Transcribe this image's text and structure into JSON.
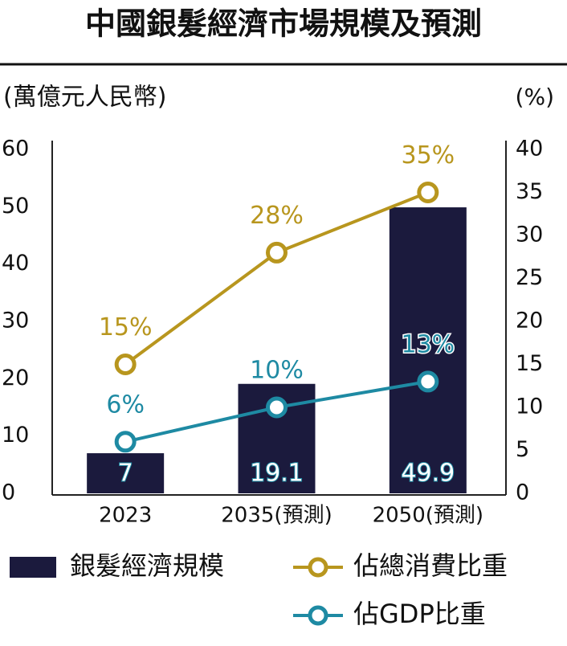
{
  "chart_data": {
    "type": "bar-line",
    "title": "中國銀髮經濟市場規模及預測",
    "y_label": "(萬億元人民幣)",
    "y2_label": "(%)",
    "categories": [
      "2023",
      "2035(預測)",
      "2050(預測)"
    ],
    "ylim": [
      0,
      60
    ],
    "yticks": [
      0,
      10,
      20,
      30,
      40,
      50,
      60
    ],
    "y2lim": [
      0,
      40
    ],
    "y2ticks": [
      0,
      5,
      10,
      15,
      20,
      25,
      30,
      35,
      40
    ],
    "legend": "bottom",
    "series": [
      {
        "name": "銀髮經濟規模",
        "type": "bar",
        "color": "#1b1a3d",
        "values": [
          7,
          19.1,
          49.9
        ]
      },
      {
        "name": "佔總消費比重",
        "type": "line",
        "axis": "y2",
        "color": "#b8961e",
        "values": [
          15,
          28,
          35
        ],
        "value_labels": [
          "15%",
          "28%",
          "35%"
        ]
      },
      {
        "name": "佔GDP比重",
        "type": "line",
        "axis": "y2",
        "color": "#1e8aa3",
        "values": [
          6,
          10,
          13
        ],
        "value_labels": [
          "6%",
          "10%",
          "13%"
        ]
      }
    ]
  }
}
